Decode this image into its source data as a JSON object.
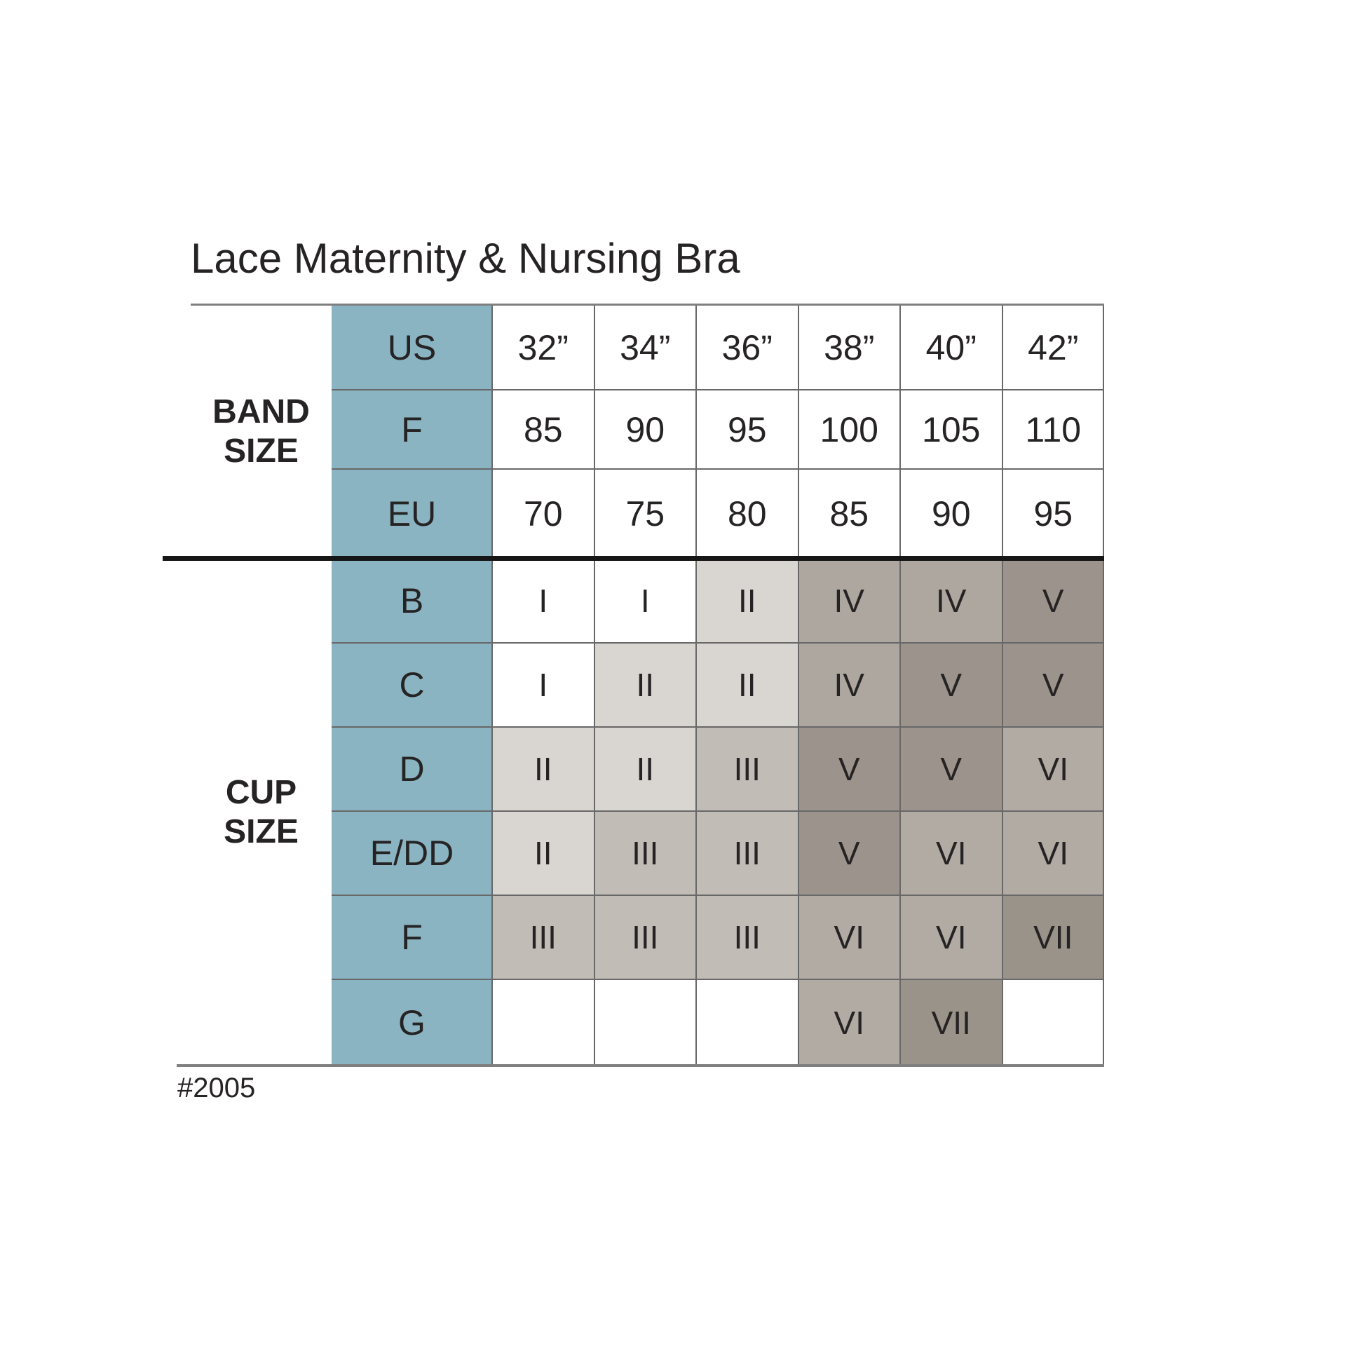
{
  "title": "Lace Maternity & Nursing Bra",
  "footer_code": "#2005",
  "colors": {
    "teal_header": "#8ab4c1",
    "text": "#262324",
    "grid_line": "#686868",
    "outer_line": "#7f7f7f",
    "thick_divider": "#161616",
    "size_group_shades": {
      "I": "#ffffff",
      "II": "#d9d5d1",
      "III": "#c2bcb7",
      "IV": "#aea79f",
      "V": "#9c948c",
      "VI": "#b2aba4",
      "VII": "#9a938a",
      "empty": "#ffffff"
    }
  },
  "band_section": {
    "label_lines": [
      "BAND",
      "SIZE"
    ],
    "rows": [
      {
        "label": "US",
        "values": [
          "32”",
          "34”",
          "36”",
          "38”",
          "40”",
          "42”"
        ]
      },
      {
        "label": "F",
        "values": [
          "85",
          "90",
          "95",
          "100",
          "105",
          "110"
        ]
      },
      {
        "label": "EU",
        "values": [
          "70",
          "75",
          "80",
          "85",
          "90",
          "95"
        ]
      }
    ]
  },
  "cup_section": {
    "label_lines": [
      "CUP",
      "SIZE"
    ],
    "rows": [
      {
        "label": "B",
        "values": [
          "I",
          "I",
          "II",
          "IV",
          "IV",
          "V"
        ]
      },
      {
        "label": "C",
        "values": [
          "I",
          "II",
          "II",
          "IV",
          "V",
          "V"
        ]
      },
      {
        "label": "D",
        "values": [
          "II",
          "II",
          "III",
          "V",
          "V",
          "VI"
        ]
      },
      {
        "label": "E/DD",
        "values": [
          "II",
          "III",
          "III",
          "V",
          "VI",
          "VI"
        ]
      },
      {
        "label": "F",
        "values": [
          "III",
          "III",
          "III",
          "VI",
          "VI",
          "VII"
        ]
      },
      {
        "label": "G",
        "values": [
          "",
          "",
          "",
          "VI",
          "VII",
          ""
        ]
      }
    ]
  },
  "chart_data": {
    "type": "table",
    "title": "Lace Maternity & Nursing Bra",
    "row_group_labels": [
      "BAND SIZE",
      "CUP SIZE"
    ],
    "band_size_columns_us": [
      "32”",
      "34”",
      "36”",
      "38”",
      "40”",
      "42”"
    ],
    "rows": [
      {
        "group": "BAND SIZE",
        "label": "US",
        "values": [
          "32”",
          "34”",
          "36”",
          "38”",
          "40”",
          "42”"
        ]
      },
      {
        "group": "BAND SIZE",
        "label": "F",
        "values": [
          "85",
          "90",
          "95",
          "100",
          "105",
          "110"
        ]
      },
      {
        "group": "BAND SIZE",
        "label": "EU",
        "values": [
          "70",
          "75",
          "80",
          "85",
          "90",
          "95"
        ]
      },
      {
        "group": "CUP SIZE",
        "label": "B",
        "values": [
          "I",
          "I",
          "II",
          "IV",
          "IV",
          "V"
        ]
      },
      {
        "group": "CUP SIZE",
        "label": "C",
        "values": [
          "I",
          "II",
          "II",
          "IV",
          "V",
          "V"
        ]
      },
      {
        "group": "CUP SIZE",
        "label": "D",
        "values": [
          "II",
          "II",
          "III",
          "V",
          "V",
          "VI"
        ]
      },
      {
        "group": "CUP SIZE",
        "label": "E/DD",
        "values": [
          "II",
          "III",
          "III",
          "V",
          "VI",
          "VI"
        ]
      },
      {
        "group": "CUP SIZE",
        "label": "F",
        "values": [
          "III",
          "III",
          "III",
          "VI",
          "VI",
          "VII"
        ]
      },
      {
        "group": "CUP SIZE",
        "label": "G",
        "values": [
          "",
          "",
          "",
          "VI",
          "VII",
          ""
        ]
      }
    ],
    "footer_code": "#2005"
  }
}
